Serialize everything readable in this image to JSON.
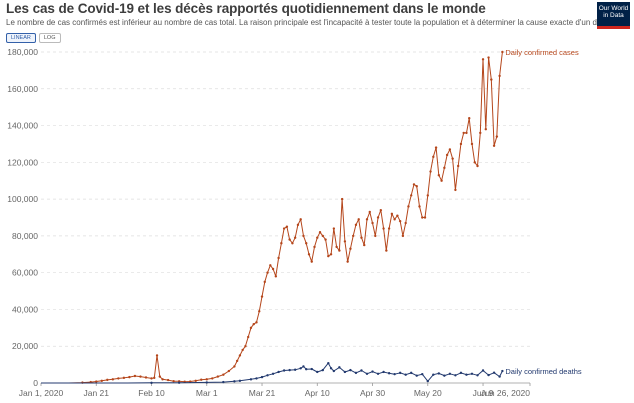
{
  "header": {
    "title": "Les cas de Covid-19 et les décès rapportés quotidiennement dans le monde",
    "subtitle": "Le nombre de cas confirmés est inférieur au nombre de cas total. La raison principale est l'incapacité à tester toute la population et à déterminer la cause exacte d'un décès",
    "logo_line1": "Our World",
    "logo_line2": "in Data",
    "scale_linear": "LINEAR",
    "scale_log": "LOG"
  },
  "colors": {
    "cases": "#b5461b",
    "deaths": "#233a6f",
    "grid": "#dddddd"
  },
  "chart_data": {
    "type": "line",
    "title": "Les cas de Covid-19 et les décès rapportés quotidiennement dans le monde",
    "xlabel": "",
    "ylabel": "",
    "x_start": "Jan 1, 2020",
    "x_end": "Jun 26, 2020",
    "ylim": [
      0,
      180000
    ],
    "yticks": [
      0,
      20000,
      40000,
      60000,
      80000,
      100000,
      120000,
      140000,
      160000,
      180000
    ],
    "ytick_labels": [
      "0",
      "20,000",
      "40,000",
      "60,000",
      "80,000",
      "100,000",
      "120,000",
      "140,000",
      "160,000",
      "180,000"
    ],
    "xticks": [
      0,
      20,
      40,
      60,
      80,
      100,
      120,
      140,
      160,
      177
    ],
    "xtick_labels": [
      "Jan 1, 2020",
      "Jan 21",
      "Feb 10",
      "Mar 1",
      "Mar 21",
      "Apr 10",
      "Apr 30",
      "May 20",
      "Jun 9",
      "Jun 26, 2020"
    ],
    "series": [
      {
        "name": "Daily confirmed cases",
        "label": "Daily confirmed cases",
        "color": "#b5461b",
        "points": [
          [
            0,
            0
          ],
          [
            10,
            0
          ],
          [
            15,
            200
          ],
          [
            18,
            500
          ],
          [
            20,
            800
          ],
          [
            22,
            1200
          ],
          [
            24,
            1700
          ],
          [
            26,
            2000
          ],
          [
            28,
            2500
          ],
          [
            30,
            2800
          ],
          [
            32,
            3200
          ],
          [
            34,
            3800
          ],
          [
            36,
            3500
          ],
          [
            38,
            3000
          ],
          [
            40,
            2500
          ],
          [
            41,
            2800
          ],
          [
            42,
            15000
          ],
          [
            43,
            3500
          ],
          [
            44,
            2000
          ],
          [
            46,
            1600
          ],
          [
            48,
            1000
          ],
          [
            50,
            900
          ],
          [
            52,
            700
          ],
          [
            54,
            800
          ],
          [
            56,
            1200
          ],
          [
            58,
            1800
          ],
          [
            60,
            2000
          ],
          [
            62,
            2500
          ],
          [
            64,
            3500
          ],
          [
            66,
            4500
          ],
          [
            68,
            6500
          ],
          [
            70,
            9000
          ],
          [
            71,
            12000
          ],
          [
            72,
            15000
          ],
          [
            73,
            18000
          ],
          [
            74,
            20000
          ],
          [
            75,
            25000
          ],
          [
            76,
            30000
          ],
          [
            77,
            32000
          ],
          [
            78,
            33000
          ],
          [
            79,
            39000
          ],
          [
            80,
            47000
          ],
          [
            81,
            55000
          ],
          [
            82,
            60000
          ],
          [
            83,
            64000
          ],
          [
            84,
            62000
          ],
          [
            85,
            58000
          ],
          [
            86,
            68000
          ],
          [
            87,
            76000
          ],
          [
            88,
            84000
          ],
          [
            89,
            85000
          ],
          [
            90,
            78000
          ],
          [
            91,
            76000
          ],
          [
            92,
            79000
          ],
          [
            93,
            86000
          ],
          [
            94,
            89000
          ],
          [
            95,
            80000
          ],
          [
            96,
            76000
          ],
          [
            97,
            70000
          ],
          [
            98,
            66000
          ],
          [
            99,
            74000
          ],
          [
            100,
            79000
          ],
          [
            101,
            82000
          ],
          [
            102,
            80000
          ],
          [
            103,
            78000
          ],
          [
            104,
            69000
          ],
          [
            105,
            70000
          ],
          [
            106,
            84000
          ],
          [
            107,
            74000
          ],
          [
            108,
            72000
          ],
          [
            109,
            100000
          ],
          [
            110,
            77000
          ],
          [
            111,
            66000
          ],
          [
            112,
            73000
          ],
          [
            113,
            80000
          ],
          [
            114,
            86000
          ],
          [
            115,
            89000
          ],
          [
            116,
            79000
          ],
          [
            117,
            75000
          ],
          [
            118,
            89000
          ],
          [
            119,
            93000
          ],
          [
            120,
            87000
          ],
          [
            121,
            80000
          ],
          [
            122,
            90000
          ],
          [
            123,
            94000
          ],
          [
            124,
            84000
          ],
          [
            125,
            72000
          ],
          [
            126,
            84000
          ],
          [
            127,
            92000
          ],
          [
            128,
            89000
          ],
          [
            129,
            91000
          ],
          [
            130,
            88000
          ],
          [
            131,
            80000
          ],
          [
            132,
            87000
          ],
          [
            133,
            96000
          ],
          [
            134,
            102000
          ],
          [
            135,
            108000
          ],
          [
            136,
            107000
          ],
          [
            137,
            96000
          ],
          [
            138,
            90000
          ],
          [
            139,
            90000
          ],
          [
            140,
            102000
          ],
          [
            141,
            115000
          ],
          [
            142,
            123000
          ],
          [
            143,
            128000
          ],
          [
            144,
            113000
          ],
          [
            145,
            110000
          ],
          [
            146,
            117000
          ],
          [
            147,
            124000
          ],
          [
            148,
            127000
          ],
          [
            149,
            122000
          ],
          [
            150,
            105000
          ],
          [
            151,
            118000
          ],
          [
            152,
            130000
          ],
          [
            153,
            136000
          ],
          [
            154,
            136000
          ],
          [
            155,
            144000
          ],
          [
            156,
            130000
          ],
          [
            157,
            120000
          ],
          [
            158,
            118000
          ],
          [
            159,
            136000
          ],
          [
            160,
            176000
          ],
          [
            161,
            138000
          ],
          [
            162,
            177000
          ],
          [
            163,
            165000
          ],
          [
            164,
            129000
          ],
          [
            165,
            134000
          ],
          [
            166,
            167000
          ],
          [
            167,
            180000
          ]
        ]
      },
      {
        "name": "Daily confirmed deaths",
        "label": "Daily confirmed deaths",
        "color": "#233a6f",
        "points": [
          [
            0,
            0
          ],
          [
            30,
            0
          ],
          [
            40,
            100
          ],
          [
            50,
            150
          ],
          [
            60,
            300
          ],
          [
            66,
            500
          ],
          [
            70,
            900
          ],
          [
            72,
            1200
          ],
          [
            76,
            2000
          ],
          [
            78,
            2500
          ],
          [
            80,
            3200
          ],
          [
            82,
            4200
          ],
          [
            84,
            5000
          ],
          [
            86,
            6000
          ],
          [
            88,
            6800
          ],
          [
            90,
            7000
          ],
          [
            92,
            7200
          ],
          [
            94,
            8000
          ],
          [
            95,
            9000
          ],
          [
            96,
            7500
          ],
          [
            98,
            7600
          ],
          [
            100,
            6000
          ],
          [
            102,
            7000
          ],
          [
            104,
            10800
          ],
          [
            105,
            8000
          ],
          [
            106,
            6500
          ],
          [
            108,
            8500
          ],
          [
            110,
            6000
          ],
          [
            112,
            7000
          ],
          [
            114,
            5500
          ],
          [
            116,
            6800
          ],
          [
            118,
            5000
          ],
          [
            120,
            6200
          ],
          [
            122,
            5000
          ],
          [
            124,
            6000
          ],
          [
            126,
            5300
          ],
          [
            128,
            4800
          ],
          [
            130,
            5500
          ],
          [
            132,
            4500
          ],
          [
            134,
            5500
          ],
          [
            136,
            4000
          ],
          [
            138,
            4800
          ],
          [
            140,
            1000
          ],
          [
            142,
            4500
          ],
          [
            144,
            5200
          ],
          [
            146,
            4000
          ],
          [
            148,
            5000
          ],
          [
            150,
            4200
          ],
          [
            152,
            5500
          ],
          [
            154,
            4500
          ],
          [
            156,
            5000
          ],
          [
            158,
            4200
          ],
          [
            160,
            6800
          ],
          [
            162,
            4300
          ],
          [
            164,
            5600
          ],
          [
            166,
            3500
          ],
          [
            167,
            6500
          ]
        ]
      }
    ]
  }
}
